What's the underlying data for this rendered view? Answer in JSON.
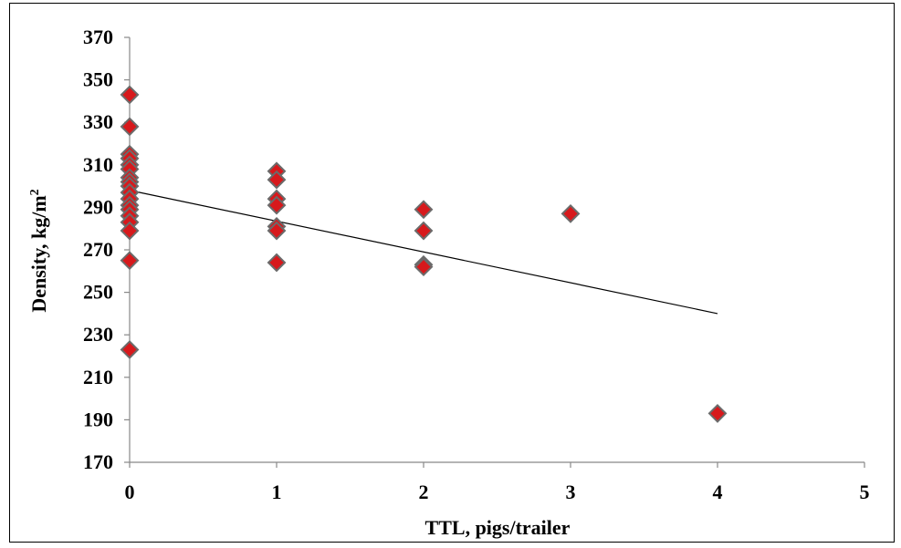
{
  "chart_data": {
    "type": "scatter",
    "title": "",
    "xlabel": "TTL, pigs/trailer",
    "ylabel_main": "Density, kg/m",
    "ylabel_sup": "2",
    "xlim": [
      0,
      5
    ],
    "ylim": [
      170,
      370
    ],
    "x_ticks": [
      0,
      1,
      2,
      3,
      4,
      5
    ],
    "y_ticks": [
      170,
      190,
      210,
      230,
      250,
      270,
      290,
      310,
      330,
      350,
      370
    ],
    "grid": false,
    "legend": "none",
    "marker_color": "#d7191c",
    "marker_edge": "#6b6b6b",
    "points": [
      [
        0,
        343
      ],
      [
        0,
        328
      ],
      [
        0,
        315
      ],
      [
        0,
        313
      ],
      [
        0,
        310
      ],
      [
        0,
        308
      ],
      [
        0,
        304
      ],
      [
        0,
        302
      ],
      [
        0,
        300
      ],
      [
        0,
        297
      ],
      [
        0,
        294
      ],
      [
        0,
        291
      ],
      [
        0,
        289
      ],
      [
        0,
        286
      ],
      [
        0,
        283
      ],
      [
        0,
        279
      ],
      [
        0,
        265
      ],
      [
        0,
        223
      ],
      [
        1,
        307
      ],
      [
        1,
        303
      ],
      [
        1,
        294
      ],
      [
        1,
        291
      ],
      [
        1,
        281
      ],
      [
        1,
        279
      ],
      [
        1,
        264
      ],
      [
        2,
        289
      ],
      [
        2,
        279
      ],
      [
        2,
        263
      ],
      [
        2,
        262
      ],
      [
        3,
        287
      ],
      [
        4,
        193
      ]
    ],
    "trendline": {
      "x": [
        0,
        4
      ],
      "y": [
        298,
        240
      ],
      "color": "#000000"
    }
  }
}
